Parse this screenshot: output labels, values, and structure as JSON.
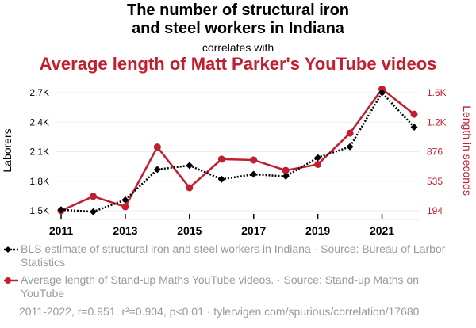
{
  "header": {
    "title_line1": "The number of structural iron",
    "title_line2": "and steel workers in Indiana",
    "connector": "correlates with",
    "title_line3": "Average length of Matt Parker's YouTube videos"
  },
  "legend": {
    "series1": "BLS estimate of structural iron and steel workers in Indiana · Source: Bureau of Larbor Statistics",
    "series2": "Average length of Stand-up Maths YouTube videos. · Source: Stand-up Maths on YouTube"
  },
  "footer": "2011-2022, r=0.951, r²=0.904, p<0.01 · tylervigen.com/spurious/correlation/17680",
  "colors": {
    "series1": "#000000",
    "series2": "#bf1f2f",
    "grid": "#eeeeee"
  },
  "chart_data": {
    "type": "line",
    "x": [
      2011,
      2012,
      2013,
      2014,
      2015,
      2016,
      2017,
      2018,
      2019,
      2020,
      2021,
      2022
    ],
    "xticks": [
      "2011",
      "2013",
      "2015",
      "2017",
      "2019",
      "2021"
    ],
    "series": [
      {
        "values": [
          1510,
          1490,
          1610,
          1920,
          1960,
          1820,
          1870,
          1850,
          2040,
          2150,
          2700,
          2350
        ],
        "axis": "left",
        "style": "dotted",
        "marker": "diamond"
      },
      {
        "values": [
          194,
          360,
          240,
          930,
          460,
          790,
          780,
          660,
          730,
          1090,
          1600,
          1310
        ],
        "axis": "right",
        "style": "solid",
        "marker": "circle"
      }
    ],
    "ylabel": "Laborers",
    "y2label": "Length in seconds",
    "yticks": [
      "1.5K",
      "1.8K",
      "2.1K",
      "2.4K",
      "2.7K"
    ],
    "ytick_values": [
      1500,
      1800,
      2100,
      2400,
      2700
    ],
    "y2ticks": [
      "194",
      "535",
      "876",
      "1.2K",
      "1.6K"
    ],
    "y2tick_values": [
      194,
      535,
      876,
      1217,
      1558
    ],
    "grid": true
  }
}
